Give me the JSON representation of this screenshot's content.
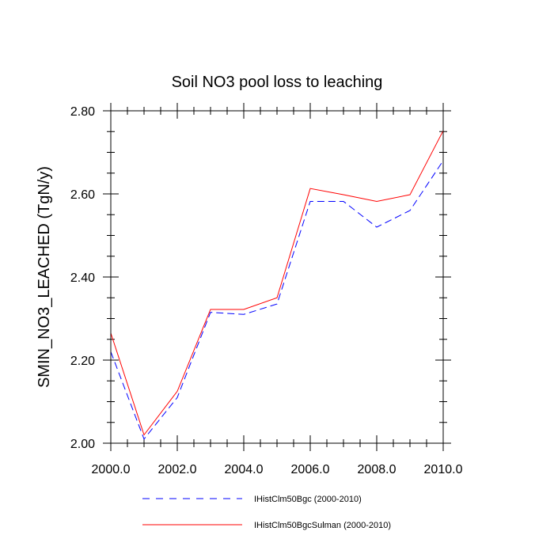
{
  "chart_data": {
    "type": "line",
    "title": "Soil NO3 pool loss to leaching",
    "xlabel": "",
    "ylabel": "SMIN_NO3_LEACHED  (TgN/y)",
    "xlim": [
      2000,
      2010
    ],
    "ylim": [
      2.0,
      2.8
    ],
    "xticks": [
      2000,
      2002,
      2004,
      2006,
      2008,
      2010
    ],
    "xtick_labels": [
      "2000.0",
      "2002.0",
      "2004.0",
      "2006.0",
      "2008.0",
      "2010.0"
    ],
    "yticks": [
      2.0,
      2.2,
      2.4,
      2.6,
      2.8
    ],
    "ytick_labels": [
      "2.00",
      "2.20",
      "2.40",
      "2.60",
      "2.80"
    ],
    "grid": false,
    "legend_position": "bottom",
    "series": [
      {
        "name": "IHistClm50Bgc (2000-2010)",
        "color": "#0000ff",
        "style": "dashed",
        "x": [
          2000,
          2001,
          2002,
          2003,
          2004,
          2005,
          2006,
          2007,
          2008,
          2009,
          2010
        ],
        "y": [
          2.22,
          2.01,
          2.11,
          2.315,
          2.31,
          2.335,
          2.582,
          2.582,
          2.52,
          2.56,
          2.68
        ]
      },
      {
        "name": "IHistClm50BgcSulman (2000-2010)",
        "color": "#ff0000",
        "style": "solid",
        "x": [
          2000,
          2001,
          2002,
          2003,
          2004,
          2005,
          2006,
          2007,
          2008,
          2009,
          2010
        ],
        "y": [
          2.265,
          2.02,
          2.125,
          2.322,
          2.322,
          2.35,
          2.613,
          2.598,
          2.582,
          2.598,
          2.752
        ]
      }
    ]
  }
}
